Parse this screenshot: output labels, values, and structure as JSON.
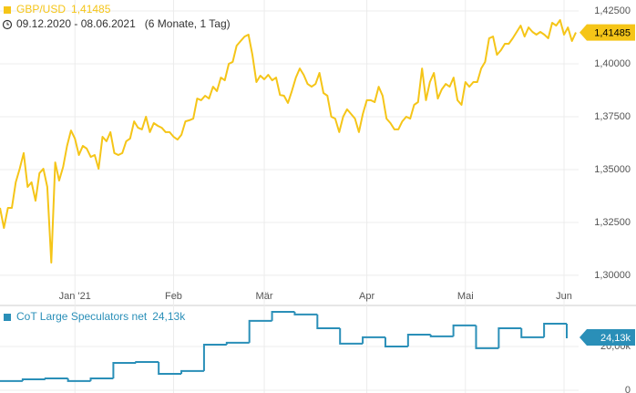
{
  "chart_data": [
    {
      "type": "line",
      "date_range": "09.12.2020 - 08.06.2021",
      "period": "(6 Monate, 1 Tag)",
      "series": [
        {
          "name": "GBP/USD",
          "color": "#f5c518",
          "current_label": "1,41485",
          "values": [
            1.3319,
            1.3224,
            1.3319,
            1.3319,
            1.344,
            1.3504,
            1.3578,
            1.3418,
            1.344,
            1.3353,
            1.3483,
            1.3504,
            1.3418,
            1.306,
            1.3534,
            1.3448,
            1.3513,
            1.3612,
            1.3685,
            1.3647,
            1.3569,
            1.3612,
            1.3599,
            1.356,
            1.3569,
            1.3504,
            1.3655,
            1.3634,
            1.3677,
            1.3578,
            1.3569,
            1.3578,
            1.3634,
            1.3647,
            1.3728,
            1.3698,
            1.369,
            1.375,
            1.3677,
            1.372,
            1.3707,
            1.3698,
            1.3677,
            1.3677,
            1.3655,
            1.3642,
            1.3664,
            1.3728,
            1.3733,
            1.3741,
            1.3836,
            1.3828,
            1.3849,
            1.3836,
            1.3892,
            1.3871,
            1.3935,
            1.3922,
            1.4,
            1.4009,
            1.4086,
            1.4108,
            1.4129,
            1.4138,
            1.4043,
            1.3914,
            1.3944,
            1.3927,
            1.3948,
            1.3922,
            1.3935,
            1.3853,
            1.3849,
            1.3815,
            1.3871,
            1.3935,
            1.3978,
            1.3948,
            1.3905,
            1.3892,
            1.3905,
            1.3957,
            1.3862,
            1.3849,
            1.375,
            1.3741,
            1.3677,
            1.375,
            1.3785,
            1.3763,
            1.3741,
            1.3677,
            1.3763,
            1.3828,
            1.3828,
            1.3819,
            1.3892,
            1.3849,
            1.3741,
            1.372,
            1.369,
            1.369,
            1.3728,
            1.375,
            1.3741,
            1.3806,
            1.3819,
            1.3978,
            1.3828,
            1.3914,
            1.3957,
            1.3836,
            1.3879,
            1.3905,
            1.3892,
            1.3935,
            1.3828,
            1.3806,
            1.3914,
            1.3892,
            1.3914,
            1.3914,
            1.3978,
            1.4009,
            1.4121,
            1.4129,
            1.4043,
            1.4065,
            1.4095,
            1.4095,
            1.4121,
            1.4151,
            1.4181,
            1.4129,
            1.4172,
            1.4151,
            1.4138,
            1.4151,
            1.4138,
            1.4121,
            1.4194,
            1.4181,
            1.4207,
            1.4138,
            1.4172,
            1.4108,
            1.41485
          ]
        }
      ],
      "xlim": [
        0,
        146
      ],
      "xticks": [
        {
          "value": 19,
          "label": "Jan '21"
        },
        {
          "value": 44,
          "label": "Feb"
        },
        {
          "value": 67,
          "label": "Mär"
        },
        {
          "value": 93,
          "label": "Apr"
        },
        {
          "value": 118,
          "label": "Mai"
        },
        {
          "value": 143,
          "label": "Jun"
        }
      ],
      "ylim": [
        1.2866,
        1.4302
      ],
      "yticks": [
        {
          "value": 1.3,
          "label": "1,30000"
        },
        {
          "value": 1.325,
          "label": "1,32500"
        },
        {
          "value": 1.35,
          "label": "1,35000"
        },
        {
          "value": 1.375,
          "label": "1,37500"
        },
        {
          "value": 1.4,
          "label": "1,40000"
        },
        {
          "value": 1.425,
          "label": "1,42500"
        }
      ],
      "grid": true
    },
    {
      "type": "step",
      "series": [
        {
          "name": "CoT Large Speculators net",
          "color": "#2a8fb8",
          "current_label": "24,13k",
          "values": [
            4.2,
            5.0,
            5.4,
            4.2,
            5.4,
            12.5,
            12.9,
            7.5,
            8.8,
            20.8,
            21.7,
            31.7,
            35.8,
            34.6,
            28.3,
            21.3,
            24.2,
            20.0,
            25.4,
            24.6,
            29.6,
            19.2,
            28.3,
            24.2,
            30.4,
            24.13
          ]
        }
      ],
      "xlim": [
        0,
        25
      ],
      "ylim": [
        -1.25,
        37.9
      ],
      "yticks": [
        0,
        {
          "value": 20,
          "label": "20,00k"
        }
      ],
      "grid": true
    }
  ]
}
